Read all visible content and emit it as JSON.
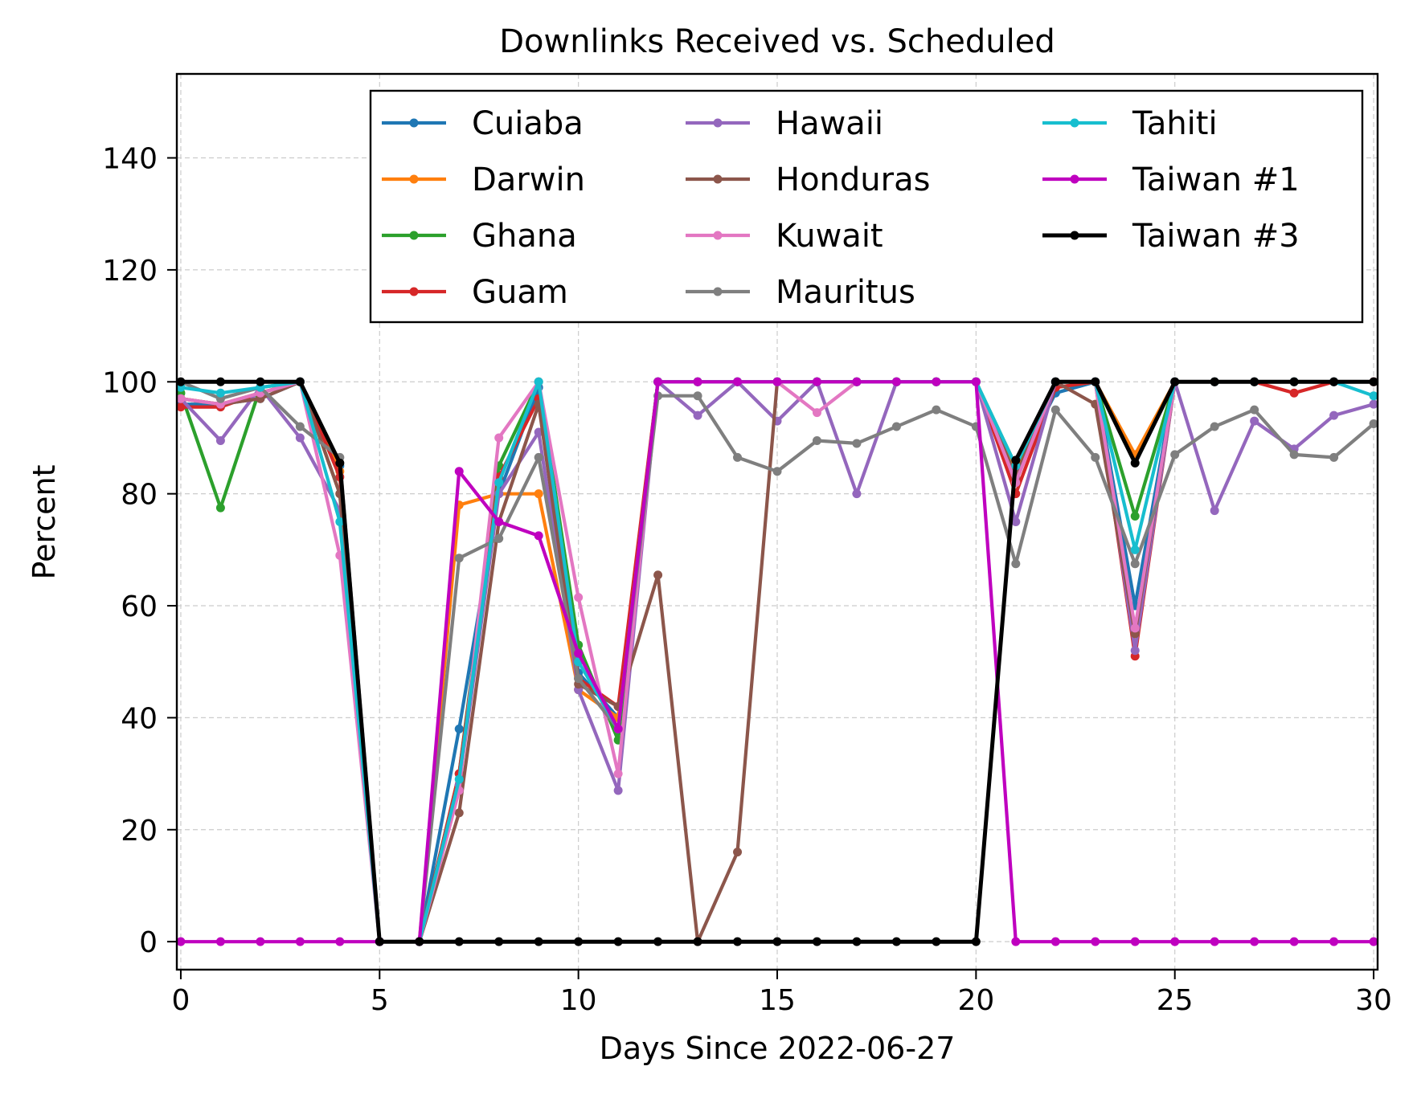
{
  "chart_data": {
    "type": "line",
    "title": "Downlinks Received vs. Scheduled",
    "xlabel": "Days Since 2022-06-27",
    "ylabel": "Percent",
    "xlim": [
      -0.1,
      30.1
    ],
    "ylim": [
      -5,
      155
    ],
    "xticks": [
      0,
      5,
      10,
      15,
      20,
      25,
      30
    ],
    "yticks": [
      0,
      20,
      40,
      60,
      80,
      100,
      120,
      140
    ],
    "grid": true,
    "legend": {
      "placement": "top-right",
      "columns": 3
    },
    "x": [
      0,
      1,
      2,
      3,
      4,
      5,
      6,
      7,
      8,
      9,
      10,
      11,
      12,
      13,
      14,
      15,
      16,
      17,
      18,
      19,
      20,
      21,
      22,
      23,
      24,
      25,
      26,
      27,
      28,
      29,
      30
    ],
    "series": [
      {
        "name": "Cuiaba",
        "color": "#1f77b4",
        "values": [
          96,
          96,
          97,
          100,
          85,
          0,
          0,
          38,
          80,
          99,
          48,
          40,
          100,
          100,
          100,
          100,
          100,
          100,
          100,
          100,
          100,
          84,
          98,
          100,
          60,
          100,
          100,
          100,
          100,
          100,
          100
        ]
      },
      {
        "name": "Darwin",
        "color": "#ff7f0e",
        "values": [
          97,
          96,
          98,
          100,
          84,
          0,
          0,
          78,
          80,
          80,
          45,
          40,
          100,
          100,
          100,
          100,
          100,
          100,
          100,
          100,
          100,
          84,
          100,
          100,
          87,
          100,
          100,
          100,
          100,
          100,
          100
        ]
      },
      {
        "name": "Ghana",
        "color": "#2ca02c",
        "values": [
          98,
          77.5,
          99,
          100,
          80,
          0,
          0,
          30,
          85,
          100,
          53,
          36,
          100,
          100,
          100,
          100,
          100,
          100,
          100,
          100,
          100,
          85,
          99,
          100,
          76,
          100,
          100,
          100,
          100,
          100,
          100
        ]
      },
      {
        "name": "Guam",
        "color": "#d62728",
        "values": [
          95.5,
          95.5,
          98,
          100,
          83,
          0,
          0,
          30,
          83,
          97,
          47,
          42,
          100,
          100,
          100,
          100,
          100,
          100,
          100,
          100,
          100,
          80,
          99,
          100,
          51,
          100,
          100,
          100,
          98,
          100,
          100
        ]
      },
      {
        "name": "Hawaii",
        "color": "#9467bd",
        "values": [
          97,
          89.5,
          99,
          90,
          77,
          0,
          0,
          28,
          80,
          91,
          45,
          27,
          100,
          94,
          100,
          93,
          100,
          80,
          100,
          100,
          100,
          75,
          100,
          100,
          52,
          100,
          77,
          93,
          88,
          94,
          96
        ]
      },
      {
        "name": "Honduras",
        "color": "#8c564b",
        "values": [
          97,
          96,
          97,
          100,
          80,
          0,
          0,
          23,
          75,
          96,
          46,
          42,
          65.5,
          0,
          16,
          100,
          100,
          100,
          100,
          100,
          100,
          83,
          100,
          96,
          55,
          100,
          100,
          100,
          100,
          100,
          100
        ]
      },
      {
        "name": "Kuwait",
        "color": "#e377c2",
        "values": [
          97,
          96,
          98,
          100,
          69,
          0,
          0,
          27,
          90,
          100,
          61.5,
          30,
          100,
          100,
          100,
          100,
          94.5,
          100,
          100,
          100,
          100,
          82,
          100,
          100,
          56,
          100,
          100,
          100,
          100,
          100,
          100
        ]
      },
      {
        "name": "Mauritus",
        "color": "#7f7f7f",
        "values": [
          100,
          97,
          99,
          92,
          86.5,
          0,
          0,
          68.5,
          72,
          86.5,
          47,
          38,
          97.5,
          97.5,
          86.5,
          84,
          89.5,
          89,
          92,
          95,
          92,
          67.5,
          95,
          86.5,
          67.5,
          87,
          92,
          95,
          87,
          86.5,
          92.5
        ]
      },
      {
        "name": "Tahiti",
        "color": "#17becf",
        "values": [
          99,
          98,
          99,
          100,
          75,
          0,
          0,
          29,
          82,
          100,
          50,
          38,
          100,
          100,
          100,
          100,
          100,
          100,
          100,
          100,
          100,
          85,
          100,
          100,
          70,
          100,
          100,
          100,
          100,
          100,
          97.5
        ]
      },
      {
        "name": "Taiwan #1",
        "color": "#bf00bf",
        "values": [
          0,
          0,
          0,
          0,
          0,
          0,
          0,
          84,
          75,
          72.5,
          51.5,
          38,
          100,
          100,
          100,
          100,
          100,
          100,
          100,
          100,
          100,
          0,
          0,
          0,
          0,
          0,
          0,
          0,
          0,
          0,
          0
        ]
      },
      {
        "name": "Taiwan #3",
        "color": "#000000",
        "values": [
          100,
          100,
          100,
          100,
          85.5,
          0,
          0,
          0,
          0,
          0,
          0,
          0,
          0,
          0,
          0,
          0,
          0,
          0,
          0,
          0,
          0,
          86,
          100,
          100,
          85.5,
          100,
          100,
          100,
          100,
          100,
          100
        ]
      }
    ]
  }
}
